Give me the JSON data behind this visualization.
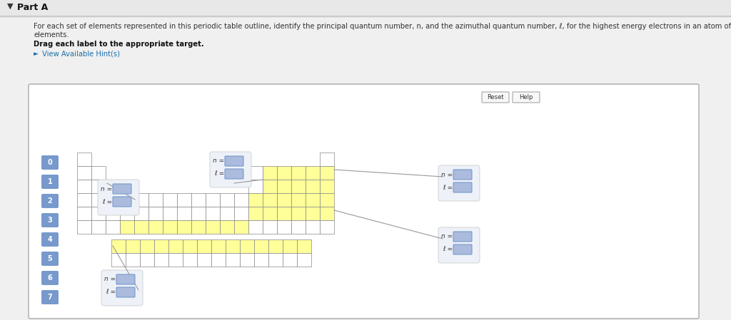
{
  "bg_top": "#f0f0f0",
  "bg_panel": "#ffffff",
  "title": "Part A",
  "text1a": "For each set of elements represented in this periodic table outline, identify the principal quantum number, n, and the azimuthal quantum number, ℓ, for the highest energy electrons in an atom of one of those",
  "text1b": "elements.",
  "text2": "Drag each label to the appropriate target.",
  "hint_color": "#1a6ea8",
  "hint_text": "View Available Hint(s)",
  "cell_white": "#ffffff",
  "cell_yellow": "#ffff99",
  "cell_border": "#888888",
  "num_label_bg": "#7799cc",
  "num_label_fg": "#ffffff",
  "number_labels": [
    "0",
    "1",
    "2",
    "3",
    "4",
    "5",
    "6",
    "7"
  ],
  "input_fill": "#aabbdd",
  "input_border": "#7799cc",
  "label_bg": "#eef2f8",
  "label_border": "#cccccc"
}
